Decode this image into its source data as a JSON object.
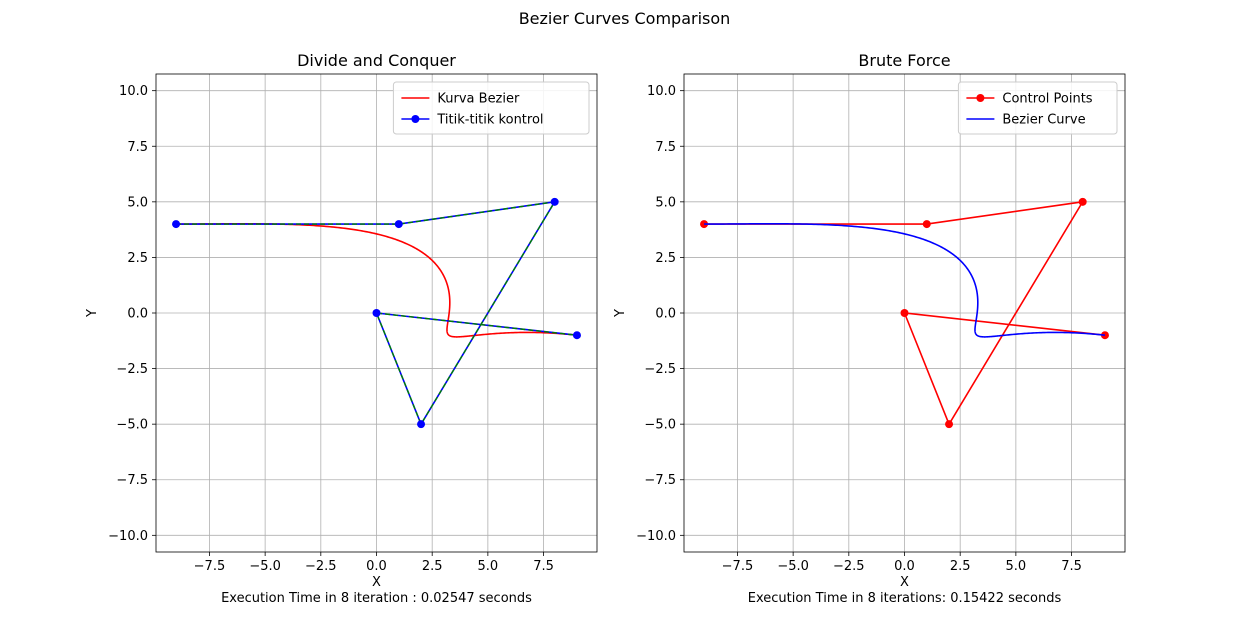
{
  "figure": {
    "title": "Bezier Curves Comparison"
  },
  "chart_data": [
    {
      "type": "line",
      "title": "Divide and Conquer",
      "xlabel": "X",
      "ylabel": "Y",
      "xlim": [
        -9.9,
        9.9
      ],
      "ylim": [
        -10.75,
        10.75
      ],
      "xticks": [
        -7.5,
        -5.0,
        -2.5,
        0.0,
        2.5,
        5.0,
        7.5
      ],
      "xtick_labels": [
        "−7.5",
        "−5.0",
        "−2.5",
        "0.0",
        "2.5",
        "5.0",
        "7.5"
      ],
      "yticks": [
        -10.0,
        -7.5,
        -5.0,
        -2.5,
        0.0,
        2.5,
        5.0,
        7.5,
        10.0
      ],
      "ytick_labels": [
        "−10.0",
        "−7.5",
        "−5.0",
        "−2.5",
        "0.0",
        "2.5",
        "5.0",
        "7.5",
        "10.0"
      ],
      "grid": true,
      "legend_position": "upper right",
      "footer": "Execution Time in 8 iteration : 0.02547 seconds",
      "control_points": {
        "x": [
          -9,
          1,
          8,
          2,
          0,
          9
        ],
        "y": [
          4,
          4,
          5,
          -5,
          0,
          -1
        ]
      },
      "series": [
        {
          "name": "Kurva Bezier",
          "kind": "curve",
          "color": "#ff0000"
        },
        {
          "name": "Titik-titik kontrol",
          "kind": "control",
          "color": "#0000ff",
          "marker": "o",
          "overlay_dashed_color": "#008000"
        }
      ]
    },
    {
      "type": "line",
      "title": "Brute Force",
      "xlabel": "X",
      "ylabel": "Y",
      "xlim": [
        -9.9,
        9.9
      ],
      "ylim": [
        -10.75,
        10.75
      ],
      "xticks": [
        -7.5,
        -5.0,
        -2.5,
        0.0,
        2.5,
        5.0,
        7.5
      ],
      "xtick_labels": [
        "−7.5",
        "−5.0",
        "−2.5",
        "0.0",
        "2.5",
        "5.0",
        "7.5"
      ],
      "yticks": [
        -10.0,
        -7.5,
        -5.0,
        -2.5,
        0.0,
        2.5,
        5.0,
        7.5,
        10.0
      ],
      "ytick_labels": [
        "−10.0",
        "−7.5",
        "−5.0",
        "−2.5",
        "0.0",
        "2.5",
        "5.0",
        "7.5",
        "10.0"
      ],
      "grid": true,
      "legend_position": "upper right",
      "footer": "Execution Time in 8 iterations: 0.15422 seconds",
      "control_points": {
        "x": [
          -9,
          1,
          8,
          2,
          0,
          9
        ],
        "y": [
          4,
          4,
          5,
          -5,
          0,
          -1
        ]
      },
      "series": [
        {
          "name": "Control Points",
          "kind": "control",
          "color": "#ff0000",
          "marker": "o"
        },
        {
          "name": "Bezier Curve",
          "kind": "curve",
          "color": "#0000ff"
        }
      ]
    }
  ]
}
